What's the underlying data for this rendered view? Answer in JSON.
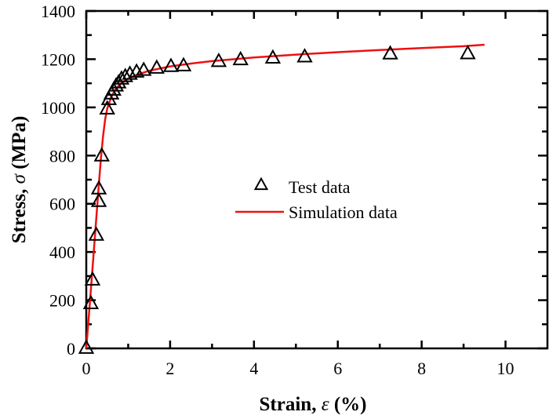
{
  "chart_data": {
    "type": "scatter",
    "title": "",
    "xlabel": "Strain, ε (%)",
    "xlabel_parts": {
      "prefix": "Strain, ",
      "symbol": "ε",
      "suffix": " (%)"
    },
    "ylabel": "Stress, σ (MPa)",
    "ylabel_parts": {
      "prefix": "Stress, ",
      "symbol": "σ",
      "suffix": " (MPa)"
    },
    "xlim": [
      0,
      11
    ],
    "ylim": [
      0,
      1400
    ],
    "x_ticks": [
      0,
      2,
      4,
      6,
      8,
      10
    ],
    "x_tick_labels": [
      "0",
      "2",
      "4",
      "6",
      "8",
      "10"
    ],
    "x_minor_ticks": [
      1,
      3,
      5,
      7,
      9
    ],
    "y_ticks": [
      0,
      200,
      400,
      600,
      800,
      1000,
      1200,
      1400
    ],
    "y_tick_labels": [
      "0",
      "200",
      "400",
      "600",
      "800",
      "1000",
      "1200",
      "1400"
    ],
    "y_minor_ticks": [
      100,
      300,
      500,
      700,
      900,
      1100,
      1300
    ],
    "grid": false,
    "legend": {
      "placement": "center",
      "entries": [
        {
          "label": "Test data",
          "marker": "open-triangle",
          "color": "#000000"
        },
        {
          "label": "Simulation data",
          "marker": "line",
          "color": "#ee1111"
        }
      ]
    },
    "series": [
      {
        "name": "Test data",
        "type": "scatter",
        "marker": "open-triangle",
        "color": "#000000",
        "x": [
          0.0,
          0.11,
          0.15,
          0.24,
          0.3,
          0.3,
          0.37,
          0.5,
          0.54,
          0.6,
          0.65,
          0.71,
          0.77,
          0.84,
          0.93,
          1.04,
          1.2,
          1.37,
          1.68,
          2.02,
          2.32,
          3.16,
          3.68,
          4.45,
          5.21,
          7.25,
          9.1
        ],
        "y": [
          0,
          185,
          283,
          469,
          609,
          661,
          798,
          993,
          1032,
          1055,
          1071,
          1088,
          1101,
          1117,
          1127,
          1137,
          1146,
          1153,
          1162,
          1169,
          1172,
          1190,
          1197,
          1204,
          1209,
          1221,
          1222
        ]
      },
      {
        "name": "Simulation data",
        "type": "line",
        "color": "#ee1111",
        "x": [
          0.0,
          0.1,
          0.2,
          0.3,
          0.35,
          0.4,
          0.45,
          0.5,
          0.6,
          0.7,
          0.8,
          1.0,
          1.2,
          1.5,
          2.0,
          2.5,
          3.0,
          4.0,
          5.0,
          6.0,
          7.0,
          8.0,
          9.0,
          9.5
        ],
        "y": [
          0,
          220,
          450,
          680,
          790,
          880,
          950,
          995,
          1045,
          1075,
          1095,
          1120,
          1135,
          1152,
          1170,
          1182,
          1192,
          1207,
          1219,
          1229,
          1238,
          1246,
          1254,
          1260
        ]
      }
    ]
  }
}
